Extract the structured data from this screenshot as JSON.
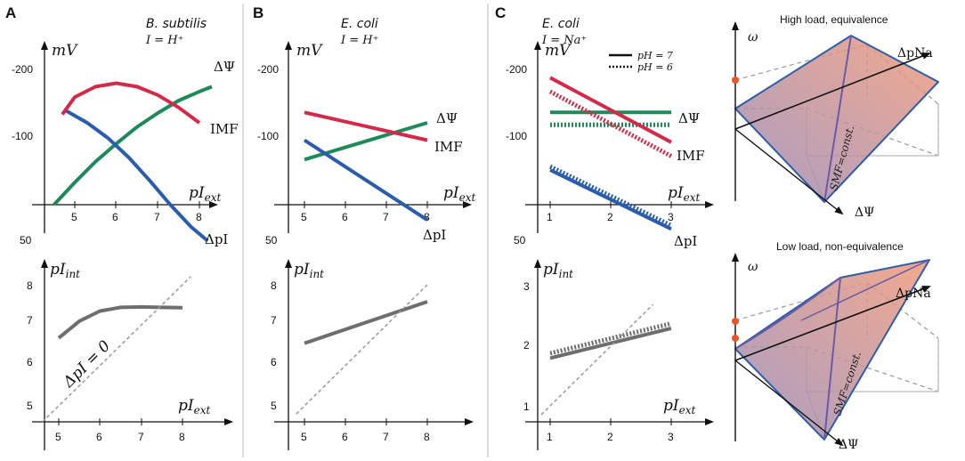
{
  "colors": {
    "dpsi": "#1e8a5a",
    "imf": "#d42a4a",
    "dpi": "#2a5caf",
    "pint": "#6e6e6e",
    "identity": "#999999",
    "plane_blue": "#2f5ea8",
    "plane_fill_top": "#f09a7a",
    "plane_fill_bottom": "#9a8cb8",
    "dot": "#e8552a"
  },
  "panels": {
    "A": {
      "letter": "A",
      "organism": "B. subtilis",
      "ion": "I = H⁺"
    },
    "B": {
      "letter": "B",
      "organism": "E. coli",
      "ion": "I = H⁺"
    },
    "C": {
      "letter": "C",
      "organism": "E. coli",
      "ion": "I = Na⁺"
    }
  },
  "axis_labels": {
    "mV": "mV",
    "pIext": "pIext",
    "pIint": "pIint"
  },
  "legend": {
    "solid": "pH = 7",
    "dotted": "pH = 6"
  },
  "annotations": {
    "identity": "ΔpI = 0"
  },
  "chart_data": [
    {
      "id": "A-top",
      "type": "line",
      "title": "B. subtilis, I = H⁺",
      "xlabel": "pIext",
      "ylabel": "mV",
      "xlim": [
        4.0,
        8.8
      ],
      "ylim": [
        -250,
        50
      ],
      "y_inverted": true,
      "xticks": [
        "5",
        "6",
        "7",
        "8"
      ],
      "yticks": [
        "-200",
        "-100",
        "50"
      ],
      "series": [
        {
          "name": "ΔΨ",
          "color_key": "dpsi",
          "x": [
            4.5,
            5.0,
            5.5,
            6.0,
            6.5,
            7.0,
            7.5,
            8.0,
            8.3
          ],
          "y": [
            0,
            -32,
            -62,
            -88,
            -112,
            -132,
            -150,
            -163,
            -170
          ]
        },
        {
          "name": "IMF",
          "color_key": "imf",
          "x": [
            4.7,
            5.0,
            5.5,
            6.0,
            6.5,
            7.0,
            7.5,
            8.0
          ],
          "y": [
            -130,
            -155,
            -170,
            -175,
            -170,
            -158,
            -140,
            -118
          ]
        },
        {
          "name": "ΔpI",
          "color_key": "dpi",
          "x": [
            4.8,
            5.3,
            5.8,
            6.3,
            6.8,
            7.3,
            7.8,
            8.2
          ],
          "y": [
            -135,
            -118,
            -96,
            -68,
            -35,
            0,
            32,
            52
          ]
        }
      ]
    },
    {
      "id": "A-bottom",
      "type": "line",
      "xlabel": "pIext",
      "ylabel": "pIint",
      "xlim": [
        4.5,
        8.8
      ],
      "ylim": [
        4.6,
        8.4
      ],
      "xticks": [
        "5",
        "6",
        "7",
        "8"
      ],
      "yticks": [
        "5",
        "6",
        "7",
        "8"
      ],
      "series": [
        {
          "name": "pIint",
          "color_key": "pint",
          "x": [
            5.0,
            5.5,
            6.0,
            6.5,
            7.0,
            7.5,
            8.0
          ],
          "y": [
            6.68,
            7.1,
            7.35,
            7.44,
            7.45,
            7.44,
            7.43
          ]
        },
        {
          "name": "ΔpI = 0",
          "color_key": "identity",
          "dashed": true,
          "x": [
            4.6,
            8.2
          ],
          "y": [
            4.6,
            8.2
          ]
        }
      ]
    },
    {
      "id": "B-top",
      "type": "line",
      "title": "E. coli, I = H⁺",
      "xlabel": "pIext",
      "ylabel": "mV",
      "xlim": [
        4.6,
        8.8
      ],
      "ylim": [
        -250,
        50
      ],
      "y_inverted": true,
      "xticks": [
        "5",
        "6",
        "7",
        "8"
      ],
      "yticks": [
        "-200",
        "-100",
        "50"
      ],
      "series": [
        {
          "name": "ΔΨ",
          "color_key": "dpsi",
          "x": [
            5.0,
            8.0
          ],
          "y": [
            -65,
            -118
          ]
        },
        {
          "name": "IMF",
          "color_key": "imf",
          "x": [
            5.0,
            8.0
          ],
          "y": [
            -133,
            -93
          ]
        },
        {
          "name": "ΔpI",
          "color_key": "dpi",
          "x": [
            5.0,
            8.0
          ],
          "y": [
            -93,
            22
          ]
        }
      ]
    },
    {
      "id": "B-bottom",
      "type": "line",
      "xlabel": "pIext",
      "ylabel": "pIint",
      "xlim": [
        4.6,
        8.8
      ],
      "ylim": [
        4.6,
        8.4
      ],
      "xticks": [
        "5",
        "6",
        "7",
        "8"
      ],
      "yticks": [
        "5",
        "6",
        "7",
        "8"
      ],
      "series": [
        {
          "name": "pIint",
          "color_key": "pint",
          "x": [
            5.0,
            8.0
          ],
          "y": [
            6.55,
            7.58
          ]
        },
        {
          "name": "ΔpI = 0",
          "color_key": "identity",
          "dashed": true,
          "x": [
            4.8,
            8.0
          ],
          "y": [
            4.8,
            8.0
          ]
        }
      ]
    },
    {
      "id": "C-top",
      "type": "line",
      "title": "E. coli, I = Na⁺",
      "xlabel": "pIext",
      "ylabel": "mV",
      "xlim": [
        0.8,
        3.5
      ],
      "ylim": [
        -250,
        50
      ],
      "y_inverted": true,
      "xticks": [
        "1",
        "2",
        "3"
      ],
      "yticks": [
        "-200",
        "-100",
        "50"
      ],
      "series": [
        {
          "name": "ΔΨ",
          "condition": "pH = 7",
          "color_key": "dpsi",
          "x": [
            1.0,
            3.0
          ],
          "y": [
            -133,
            -133
          ]
        },
        {
          "name": "ΔΨ",
          "condition": "pH = 6",
          "dotted": true,
          "color_key": "dpsi",
          "x": [
            1.0,
            3.0
          ],
          "y": [
            -115,
            -115
          ]
        },
        {
          "name": "IMF",
          "condition": "pH = 7",
          "color_key": "imf",
          "x": [
            1.0,
            3.0
          ],
          "y": [
            -183,
            -90
          ]
        },
        {
          "name": "IMF",
          "condition": "pH = 6",
          "dotted": true,
          "color_key": "imf",
          "x": [
            1.0,
            3.0
          ],
          "y": [
            -163,
            -70
          ]
        },
        {
          "name": "ΔpI",
          "condition": "pH = 7",
          "color_key": "dpi",
          "x": [
            1.0,
            3.0
          ],
          "y": [
            -50,
            35
          ]
        },
        {
          "name": "ΔpI",
          "condition": "pH = 6",
          "dotted": true,
          "color_key": "dpi",
          "x": [
            1.0,
            3.0
          ],
          "y": [
            -55,
            30
          ]
        }
      ]
    },
    {
      "id": "C-bottom",
      "type": "line",
      "xlabel": "pIext",
      "ylabel": "pIint",
      "xlim": [
        0.8,
        3.5
      ],
      "ylim": [
        0.8,
        3.4
      ],
      "xticks": [
        "1",
        "2",
        "3"
      ],
      "yticks": [
        "1",
        "2",
        "3"
      ],
      "series": [
        {
          "name": "pIint",
          "condition": "pH = 7",
          "color_key": "pint",
          "x": [
            1.0,
            3.0
          ],
          "y": [
            1.8,
            2.3
          ]
        },
        {
          "name": "pIint",
          "condition": "pH = 6",
          "dotted": true,
          "color_key": "pint",
          "x": [
            1.0,
            3.0
          ],
          "y": [
            1.88,
            2.38
          ]
        },
        {
          "name": "ΔpI = 0",
          "color_key": "identity",
          "dashed": true,
          "x": [
            0.85,
            2.7
          ],
          "y": [
            0.85,
            2.7
          ]
        }
      ]
    }
  ],
  "diagrams": {
    "high": {
      "title": "High load, equivalence",
      "z_axis": "ω",
      "x_axis": "ΔpNa",
      "y_axis": "ΔΨ",
      "plane_label": "SMF=const."
    },
    "low": {
      "title": "Low load, non-equivalence",
      "z_axis": "ω",
      "x_axis": "ΔpNa",
      "y_axis": "ΔΨ",
      "plane_label": "SMF=const."
    }
  }
}
